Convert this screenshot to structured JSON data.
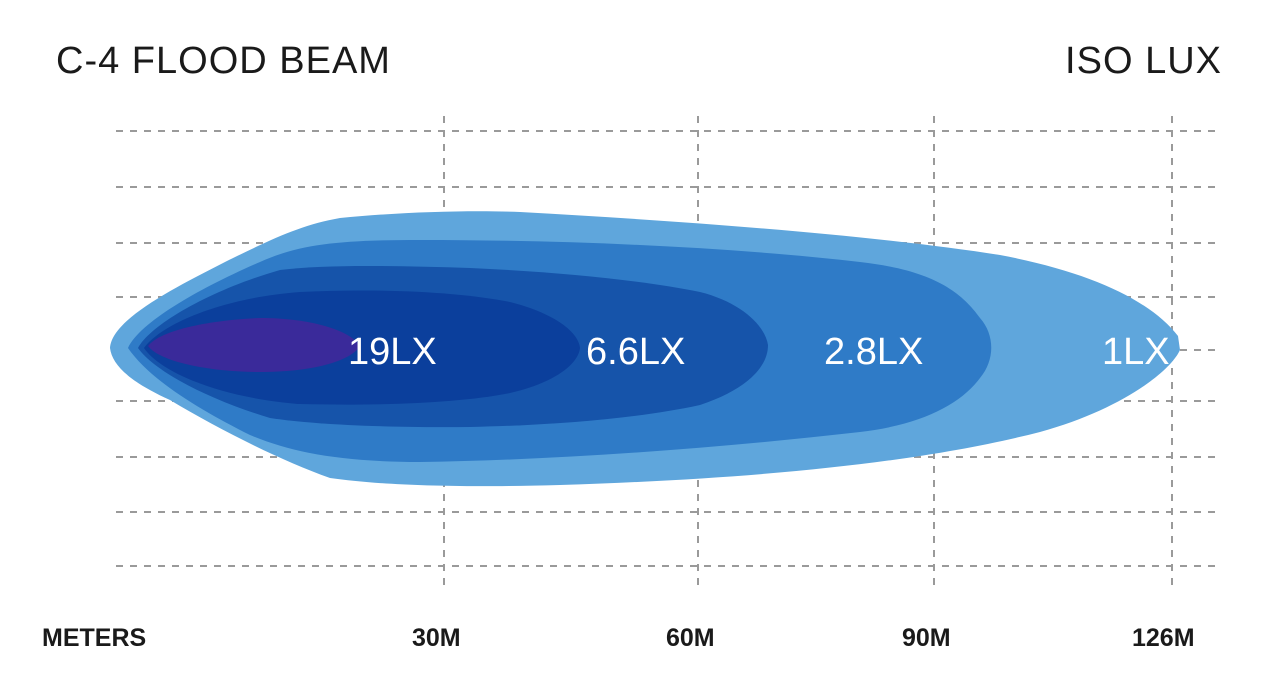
{
  "title": "C-4 FLOOD BEAM",
  "subtitle": "ISO LUX",
  "axis": {
    "unit_label": "METERS",
    "ticks": [
      "30M",
      "60M",
      "90M",
      "126M"
    ]
  },
  "zones": [
    {
      "label": "19LX",
      "color": "#3a2a9a"
    },
    {
      "label": "6.6LX",
      "color": "#0b3f9c"
    },
    {
      "label": "2.8LX",
      "color": "#1f63b8"
    },
    {
      "label": "1LX",
      "color": "#5fa6dc"
    }
  ],
  "colors": {
    "innermost": "#3a2a9a",
    "zone_19lx": "#0b3f9c",
    "zone_6_6lx": "#1f63b8",
    "zone_2_8lx": "#3a82cc",
    "zone_1lx": "#5fa6dc",
    "grid": "#9a9a9a",
    "text": "#1a1a1a"
  }
}
